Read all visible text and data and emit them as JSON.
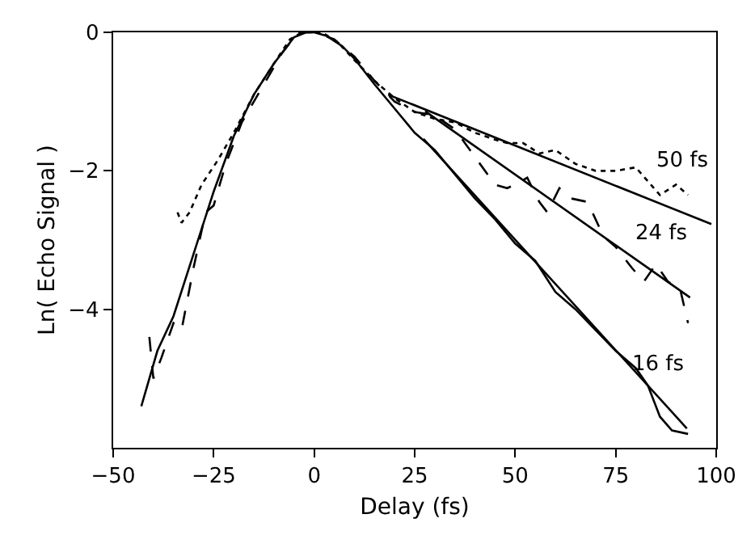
{
  "chart_data": {
    "type": "line",
    "xlabel": "Delay (fs)",
    "ylabel": "Ln( Echo Signal )",
    "xlim": [
      -50,
      100
    ],
    "xticks": [
      -50,
      -25,
      0,
      25,
      50,
      75,
      100
    ],
    "ylim": [
      -6,
      0
    ],
    "yticks": [
      0,
      -2,
      -4
    ],
    "grid": false,
    "legend": false,
    "marker": "none",
    "series": [
      {
        "color": "#000000",
        "line_style": "solid",
        "x": [
          -43,
          -39,
          -35,
          -30,
          -25,
          -20,
          -15,
          -10,
          -5,
          -2,
          0,
          3,
          7,
          10,
          15,
          20,
          25,
          30,
          35,
          40,
          45,
          50,
          55,
          60,
          65,
          70,
          75,
          80,
          83,
          86,
          89,
          93
        ],
        "values": [
          -5.4,
          -4.6,
          -4.1,
          -3.2,
          -2.3,
          -1.5,
          -0.9,
          -0.45,
          -0.07,
          0,
          0,
          -0.05,
          -0.2,
          -0.38,
          -0.75,
          -1.1,
          -1.45,
          -1.7,
          -2.05,
          -2.4,
          -2.7,
          -3.05,
          -3.3,
          -3.75,
          -4.0,
          -4.3,
          -4.6,
          -4.85,
          -5.1,
          -5.55,
          -5.75,
          -5.8
        ]
      },
      {
        "color": "#000000",
        "line_style": "dotted",
        "x": [
          -34,
          -33,
          -31,
          -28,
          -24,
          -20,
          -15,
          -10,
          -6,
          -3,
          2,
          6,
          10,
          15,
          20,
          25,
          30,
          35,
          40,
          45,
          48,
          52,
          56,
          60,
          65,
          70,
          75,
          80,
          83,
          86,
          90,
          93
        ],
        "values": [
          -2.6,
          -2.75,
          -2.6,
          -2.2,
          -1.85,
          -1.45,
          -0.9,
          -0.45,
          -0.1,
          0,
          0,
          -0.15,
          -0.4,
          -0.7,
          -0.95,
          -1.15,
          -1.25,
          -1.3,
          -1.45,
          -1.55,
          -1.6,
          -1.6,
          -1.75,
          -1.7,
          -1.9,
          -2.0,
          -2.0,
          -1.95,
          -2.15,
          -2.35,
          -2.2,
          -2.35
        ]
      },
      {
        "color": "#000000",
        "line_style": "dashed",
        "x": [
          -41,
          -40,
          -38,
          -35,
          -33,
          -30,
          -27,
          -25,
          -22,
          -18,
          -13,
          -8,
          -4,
          0,
          5,
          10,
          15,
          20,
          25,
          30,
          35,
          40,
          45,
          48,
          50,
          53,
          56,
          58,
          61,
          64,
          68,
          72,
          75,
          79,
          82,
          85,
          88,
          91,
          93
        ],
        "values": [
          -4.4,
          -5.0,
          -4.7,
          -4.2,
          -4.3,
          -3.4,
          -2.6,
          -2.5,
          -1.9,
          -1.3,
          -0.8,
          -0.3,
          0,
          0,
          -0.1,
          -0.35,
          -0.7,
          -1.0,
          -1.15,
          -1.2,
          -1.4,
          -1.8,
          -2.2,
          -2.25,
          -2.2,
          -2.1,
          -2.45,
          -2.6,
          -2.25,
          -2.4,
          -2.45,
          -2.95,
          -3.1,
          -3.4,
          -3.6,
          -3.35,
          -3.6,
          -3.7,
          -4.2
        ]
      },
      {
        "name": "50 fs",
        "color": "#000000",
        "line_style": "solid",
        "x": [
          18.4,
          98.8
        ],
        "values": [
          -0.9,
          -2.77
        ]
      },
      {
        "name": "24 fs",
        "color": "#000000",
        "line_style": "solid",
        "x": [
          27.6,
          93.5
        ],
        "values": [
          -1.14,
          -3.83
        ]
      },
      {
        "name": "16 fs",
        "color": "#000000",
        "line_style": "solid",
        "x": [
          27.2,
          92.7
        ],
        "values": [
          -1.54,
          -5.72
        ]
      }
    ]
  }
}
